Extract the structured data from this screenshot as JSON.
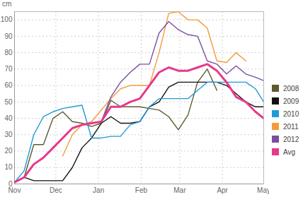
{
  "chart_data": {
    "type": "line",
    "y_label": "cm",
    "x": [
      0,
      7,
      14,
      21,
      28,
      35,
      42,
      49,
      56,
      63,
      70,
      77,
      84,
      91,
      98,
      105,
      112,
      119,
      126,
      133,
      140,
      147,
      154,
      161,
      168,
      175,
      181
    ],
    "xlim": [
      0,
      181
    ],
    "xticks": [
      {
        "value": 0,
        "label": "Nov"
      },
      {
        "value": 30,
        "label": "Dec"
      },
      {
        "value": 61,
        "label": "Jan"
      },
      {
        "value": 92,
        "label": "Feb"
      },
      {
        "value": 120,
        "label": "Mar"
      },
      {
        "value": 151,
        "label": "Apr"
      },
      {
        "value": 181,
        "label": "May"
      }
    ],
    "ylim": [
      0,
      105
    ],
    "yticks": [
      0,
      10,
      20,
      30,
      40,
      50,
      60,
      70,
      80,
      90,
      100
    ],
    "grid": true,
    "legend": "right",
    "series": [
      {
        "name": "2008",
        "color": "#5e5a30",
        "values": [
          1,
          4,
          24,
          24,
          40,
          44,
          38,
          37,
          35,
          37,
          51,
          47,
          47,
          47,
          46,
          45,
          41,
          33,
          42,
          62,
          70,
          57,
          null,
          null,
          null,
          null,
          null
        ]
      },
      {
        "name": "2009",
        "color": "#111111",
        "values": [
          1,
          4,
          2,
          2,
          2,
          2,
          10,
          22,
          28,
          37,
          41,
          37,
          37,
          38,
          47,
          50,
          59,
          62,
          62,
          62,
          62,
          62,
          60,
          55,
          50,
          47,
          47
        ]
      },
      {
        "name": "2010",
        "color": "#1e9bd7",
        "values": [
          1,
          8,
          30,
          41,
          44,
          46,
          47,
          48,
          28,
          28,
          29,
          29,
          36,
          38,
          47,
          52,
          52,
          52,
          52,
          57,
          62,
          62,
          62,
          62,
          62,
          58,
          50
        ]
      },
      {
        "name": "2011",
        "color": "#f59a3c",
        "values": [
          null,
          null,
          null,
          null,
          null,
          17,
          30,
          36,
          38,
          45,
          52,
          58,
          60,
          60,
          60,
          80,
          104,
          105,
          100,
          100,
          95,
          75,
          74,
          80,
          75,
          null,
          null
        ]
      },
      {
        "name": "2012",
        "color": "#7b4fa0",
        "values": [
          null,
          null,
          null,
          null,
          null,
          null,
          null,
          null,
          null,
          38,
          53,
          62,
          68,
          73,
          73,
          92,
          99,
          94,
          91,
          90,
          75,
          73,
          67,
          72,
          67,
          65,
          63
        ]
      },
      {
        "name": "Avg",
        "color": "#e8388a",
        "values": [
          1,
          4,
          12,
          16,
          22,
          28,
          34,
          36,
          37,
          38,
          47,
          47,
          50,
          52,
          60,
          68,
          71,
          69,
          69,
          71,
          73,
          69,
          62,
          53,
          50,
          44,
          40
        ]
      }
    ]
  }
}
